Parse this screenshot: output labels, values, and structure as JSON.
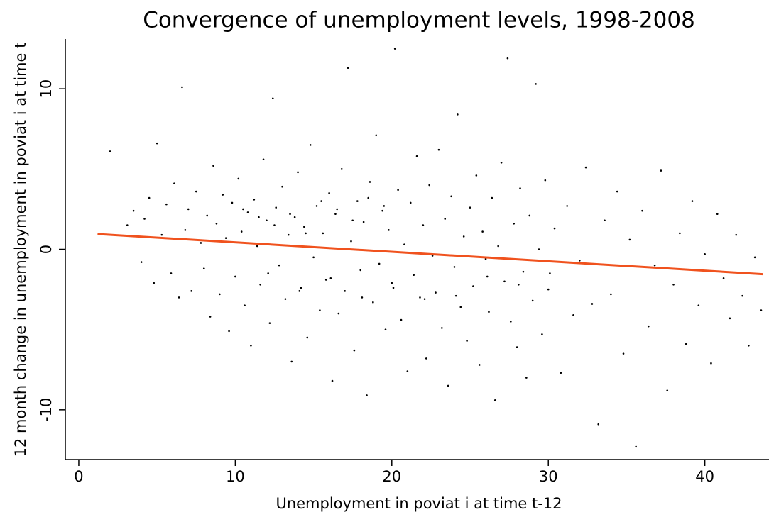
{
  "chart_data": {
    "type": "scatter",
    "title": "Convergence of unemployment levels, 1998-2008",
    "x_label": "Unemployment in poviat i at time t-12",
    "y_label": "12 month change in unemployment in poviat i at time t",
    "xlim": [
      -0.86,
      44.1
    ],
    "ylim": [
      -13.1,
      13.1
    ],
    "xticks": [
      0,
      10,
      20,
      30,
      40
    ],
    "yticks": [
      -10,
      0,
      10
    ],
    "series": [
      {
        "type": "scatter",
        "color": "#000000",
        "x": [
          2.0,
          3.1,
          3.5,
          4.0,
          4.2,
          4.5,
          4.8,
          5.0,
          5.3,
          5.6,
          5.9,
          6.1,
          6.4,
          6.6,
          6.8,
          7.0,
          7.2,
          7.5,
          7.8,
          8.0,
          8.2,
          8.4,
          8.6,
          8.8,
          9.0,
          9.2,
          9.4,
          9.6,
          9.8,
          10.0,
          10.2,
          10.4,
          10.6,
          10.8,
          11.0,
          11.2,
          11.4,
          11.6,
          11.8,
          12.0,
          12.2,
          12.4,
          12.6,
          12.8,
          13.0,
          13.2,
          13.4,
          13.6,
          13.8,
          14.0,
          14.2,
          14.4,
          14.6,
          14.8,
          15.0,
          15.2,
          15.4,
          15.6,
          15.8,
          16.0,
          16.2,
          16.4,
          16.6,
          16.8,
          17.0,
          17.2,
          17.4,
          17.6,
          17.8,
          18.0,
          18.2,
          18.4,
          18.6,
          18.8,
          19.0,
          19.2,
          19.4,
          19.6,
          19.8,
          20.0,
          20.2,
          20.4,
          20.6,
          20.8,
          21.0,
          21.2,
          21.4,
          21.6,
          21.8,
          22.0,
          22.2,
          22.4,
          22.6,
          22.8,
          23.0,
          23.2,
          23.4,
          23.6,
          23.8,
          24.0,
          24.2,
          24.4,
          24.6,
          24.8,
          25.0,
          25.2,
          25.4,
          25.6,
          25.8,
          26.0,
          26.2,
          26.4,
          26.6,
          26.8,
          27.0,
          27.2,
          27.4,
          27.6,
          27.8,
          28.0,
          28.2,
          28.4,
          28.6,
          28.8,
          29.0,
          29.2,
          29.4,
          29.6,
          29.8,
          30.0,
          30.4,
          30.8,
          31.2,
          31.6,
          32.0,
          32.4,
          32.8,
          33.2,
          33.6,
          34.0,
          34.4,
          34.8,
          35.2,
          35.6,
          36.0,
          36.4,
          36.8,
          37.2,
          37.6,
          38.0,
          38.4,
          38.8,
          39.2,
          39.6,
          40.0,
          40.4,
          40.8,
          41.2,
          41.6,
          42.0,
          42.4,
          42.8,
          43.2,
          43.6,
          10.5,
          11.5,
          12.5,
          13.5,
          14.5,
          15.5,
          16.5,
          17.5,
          18.5,
          19.5,
          12.1,
          14.1,
          16.1,
          18.1,
          20.1,
          22.1,
          24.1,
          26.1,
          28.1,
          30.1
        ],
        "values": [
          6.1,
          1.5,
          2.4,
          -0.8,
          1.9,
          3.2,
          -2.1,
          6.6,
          0.9,
          2.8,
          -1.5,
          4.1,
          -3.0,
          10.1,
          1.2,
          2.5,
          -2.6,
          3.6,
          0.4,
          -1.2,
          2.1,
          -4.2,
          5.2,
          1.6,
          -2.8,
          3.4,
          0.7,
          -5.1,
          2.9,
          -1.7,
          4.4,
          1.1,
          -3.5,
          2.3,
          -6.0,
          3.1,
          0.2,
          -2.2,
          5.6,
          1.8,
          -4.6,
          9.4,
          2.6,
          -1.0,
          3.9,
          -3.1,
          0.9,
          -7.0,
          2.0,
          4.8,
          -2.4,
          1.4,
          -5.5,
          6.5,
          -0.5,
          2.7,
          -3.8,
          1.0,
          -1.9,
          3.5,
          -8.2,
          2.2,
          -4.0,
          5.0,
          -2.6,
          11.3,
          0.5,
          -6.3,
          3.0,
          -1.3,
          1.7,
          -9.1,
          4.2,
          -3.3,
          7.1,
          -0.9,
          2.4,
          -5.0,
          1.2,
          -2.1,
          12.5,
          3.7,
          -4.4,
          0.3,
          -7.6,
          2.9,
          -1.6,
          5.8,
          -3.0,
          1.5,
          -6.8,
          4.0,
          -0.4,
          -2.7,
          6.2,
          -4.9,
          1.9,
          -8.5,
          3.3,
          -1.1,
          8.4,
          -3.6,
          0.8,
          -5.7,
          2.6,
          -2.3,
          4.6,
          -7.2,
          1.1,
          -0.6,
          -3.9,
          3.2,
          -9.4,
          0.2,
          5.4,
          -2.0,
          11.9,
          -4.5,
          1.6,
          -6.1,
          3.8,
          -1.4,
          -8.0,
          2.1,
          -3.2,
          10.3,
          0.0,
          -5.3,
          4.3,
          -2.5,
          1.3,
          -7.7,
          2.7,
          -4.1,
          -0.7,
          5.1,
          -3.4,
          -10.9,
          1.8,
          -2.8,
          3.6,
          -6.5,
          0.6,
          -12.3,
          2.4,
          -4.8,
          -1.0,
          4.9,
          -8.8,
          -2.2,
          1.0,
          -5.9,
          3.0,
          -3.5,
          -0.3,
          -7.1,
          2.2,
          -1.8,
          -4.3,
          0.9,
          -2.9,
          -6.0,
          -0.5,
          -3.8,
          2.5,
          2.0,
          1.5,
          2.2,
          1.0,
          3.0,
          2.5,
          1.8,
          3.2,
          2.7,
          -1.5,
          -2.6,
          -1.8,
          -3.0,
          -2.4,
          -3.1,
          -2.9,
          -1.7,
          -2.2,
          -1.5
        ]
      },
      {
        "type": "line",
        "color": "#f0521e",
        "x": [
          1.2,
          43.7
        ],
        "values": [
          0.95,
          -1.55
        ]
      }
    ]
  }
}
